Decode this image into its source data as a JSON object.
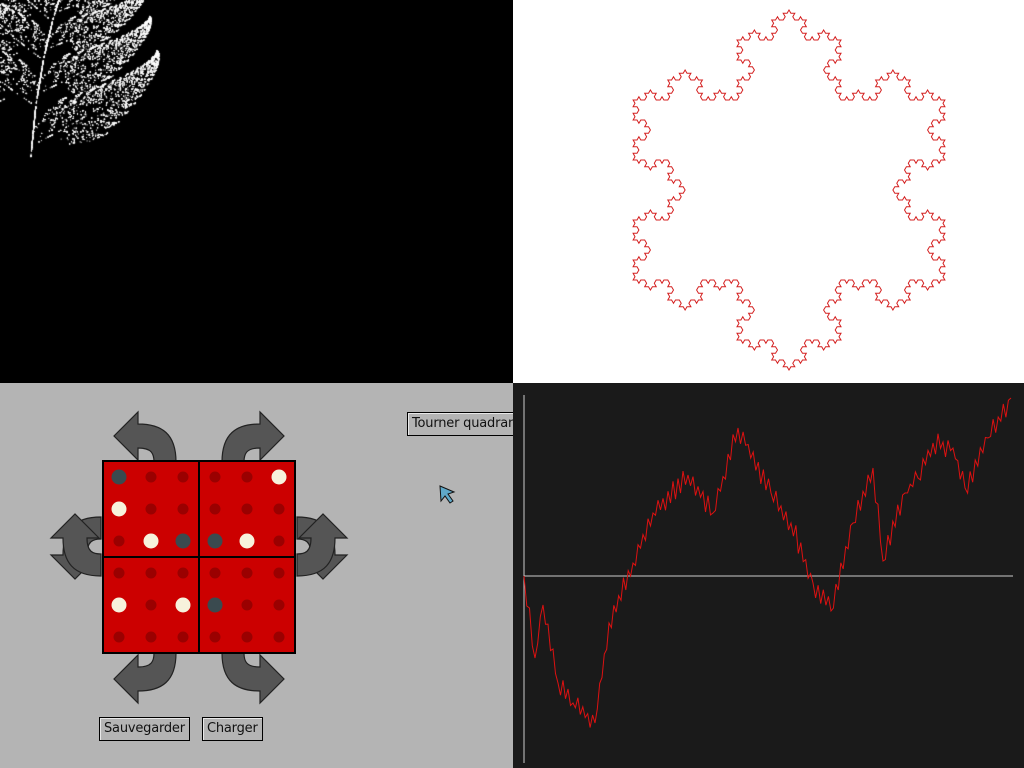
{
  "buttons": {
    "rotate_label": "Tourner quadrant",
    "save_label": "Sauvegarder",
    "load_label": "Charger"
  },
  "icons": {
    "rotate_arrow": "curved-arrow-icon",
    "cursor": "mouse-pointer-icon"
  },
  "colors": {
    "fern": "#ffffff",
    "fern_background": "#000000",
    "snowflake": "#d42020",
    "snowflake_background": "#ffffff",
    "board": "#cc0000",
    "board_border": "#000000",
    "hole": "#9a0000",
    "white_marble": "#f7f2dc",
    "black_marble": "#3a4a4f",
    "arrow": "#555555",
    "game_background": "#b4b4b4",
    "walk_line": "#dd1111",
    "walk_background": "#1a1a1a",
    "walk_axis": "#cccccc"
  },
  "board": {
    "size": 6,
    "cells": [
      [
        "black",
        "empty",
        "empty",
        "empty",
        "empty",
        "white"
      ],
      [
        "white",
        "empty",
        "empty",
        "empty",
        "empty",
        "empty"
      ],
      [
        "empty",
        "white",
        "black",
        "black",
        "white",
        "empty"
      ],
      [
        "empty",
        "empty",
        "empty",
        "empty",
        "empty",
        "empty"
      ],
      [
        "white",
        "empty",
        "white",
        "black",
        "empty",
        "empty"
      ],
      [
        "empty",
        "empty",
        "empty",
        "empty",
        "empty",
        "empty"
      ]
    ]
  }
}
